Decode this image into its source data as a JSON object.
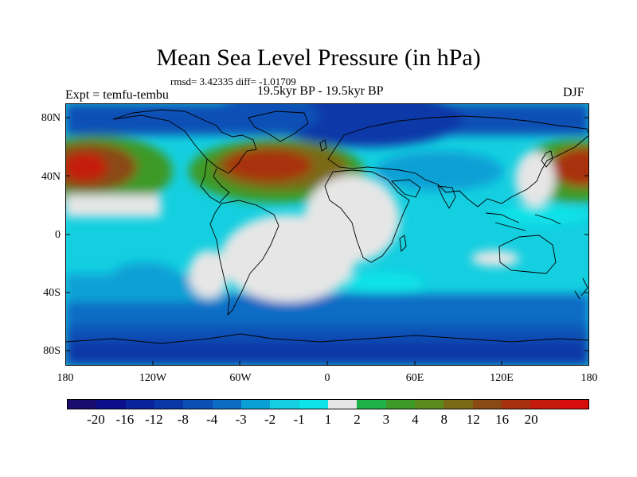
{
  "title": "Mean Sea Level Pressure (in hPa)",
  "stats": "rmsd= 3.42335 diff= -1.01709",
  "experiment": "Expt = temfu-tembu",
  "period": "19.5kyr BP - 19.5kyr BP",
  "season": "DJF",
  "y_ticks": [
    "80N",
    "40N",
    "0",
    "40S",
    "80S"
  ],
  "x_ticks": [
    "180",
    "120W",
    "60W",
    "0",
    "60E",
    "120E",
    "180"
  ],
  "colorbar": {
    "labels": [
      "-20",
      "-16",
      "-12",
      "-8",
      "-4",
      "-3",
      "-2",
      "-1",
      "1",
      "2",
      "3",
      "4",
      "8",
      "12",
      "16",
      "20"
    ],
    "colors": [
      "#1a0b6e",
      "#0b0f8c",
      "#0a229c",
      "#0a37a8",
      "#0b4fb5",
      "#0c6cc4",
      "#0aa0d6",
      "#14cfe0",
      "#0de3e8",
      "#e6e6e6",
      "#1fb24a",
      "#3e9a28",
      "#5c8a1c",
      "#7a6a16",
      "#8a4a14",
      "#a8300f",
      "#c41b0c",
      "#d80e0e"
    ]
  }
}
